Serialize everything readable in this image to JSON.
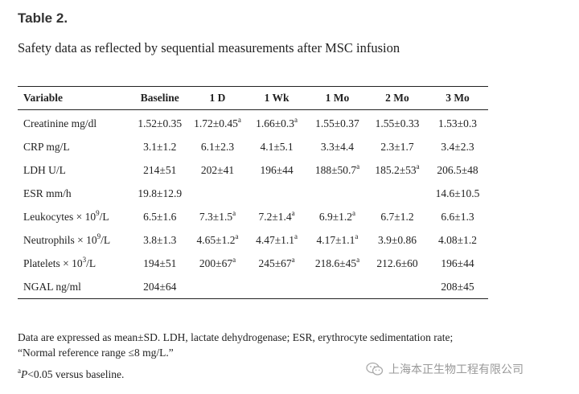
{
  "title": "Table 2.",
  "caption": "Safety data as reflected by sequential measurements after MSC infusion",
  "table": {
    "headers": [
      "Variable",
      "Baseline",
      "1 D",
      "1 Wk",
      "1 Mo",
      "2 Mo",
      "3 Mo"
    ],
    "rows": [
      {
        "name": "Creatinine mg/dl",
        "name_sup": "",
        "name_post": "",
        "cells": [
          {
            "v": "1.52±0.35",
            "s": ""
          },
          {
            "v": "1.72±0.45",
            "s": "a"
          },
          {
            "v": "1.66±0.3",
            "s": "a"
          },
          {
            "v": "1.55±0.37",
            "s": ""
          },
          {
            "v": "1.55±0.33",
            "s": ""
          },
          {
            "v": "1.53±0.3",
            "s": ""
          }
        ]
      },
      {
        "name": "CRP mg/L",
        "name_sup": "",
        "name_post": "",
        "cells": [
          {
            "v": "3.1±1.2",
            "s": ""
          },
          {
            "v": "6.1±2.3",
            "s": ""
          },
          {
            "v": "4.1±5.1",
            "s": ""
          },
          {
            "v": "3.3±4.4",
            "s": ""
          },
          {
            "v": "2.3±1.7",
            "s": ""
          },
          {
            "v": "3.4±2.3",
            "s": ""
          }
        ]
      },
      {
        "name": "LDH U/L",
        "name_sup": "",
        "name_post": "",
        "cells": [
          {
            "v": "214±51",
            "s": ""
          },
          {
            "v": "202±41",
            "s": ""
          },
          {
            "v": "196±44",
            "s": ""
          },
          {
            "v": "188±50.7",
            "s": "a"
          },
          {
            "v": "185.2±53",
            "s": "a"
          },
          {
            "v": "206.5±48",
            "s": ""
          }
        ]
      },
      {
        "name": "ESR mm/h",
        "name_sup": "",
        "name_post": "",
        "cells": [
          {
            "v": "19.8±12.9",
            "s": ""
          },
          {
            "v": "",
            "s": ""
          },
          {
            "v": "",
            "s": ""
          },
          {
            "v": "",
            "s": ""
          },
          {
            "v": "",
            "s": ""
          },
          {
            "v": "14.6±10.5",
            "s": ""
          }
        ]
      },
      {
        "name": "Leukocytes × 10",
        "name_sup": "9",
        "name_post": "/L",
        "cells": [
          {
            "v": "6.5±1.6",
            "s": ""
          },
          {
            "v": "7.3±1.5",
            "s": "a"
          },
          {
            "v": "7.2±1.4",
            "s": "a"
          },
          {
            "v": "6.9±1.2",
            "s": "a"
          },
          {
            "v": "6.7±1.2",
            "s": ""
          },
          {
            "v": "6.6±1.3",
            "s": ""
          }
        ]
      },
      {
        "name": "Neutrophils × 10",
        "name_sup": "9",
        "name_post": "/L",
        "cells": [
          {
            "v": "3.8±1.3",
            "s": ""
          },
          {
            "v": "4.65±1.2",
            "s": "a"
          },
          {
            "v": "4.47±1.1",
            "s": "a"
          },
          {
            "v": "4.17±1.1",
            "s": "a"
          },
          {
            "v": "3.9±0.86",
            "s": ""
          },
          {
            "v": "4.08±1.2",
            "s": ""
          }
        ]
      },
      {
        "name": "Platelets × 10",
        "name_sup": "3",
        "name_post": "/L",
        "cells": [
          {
            "v": "194±51",
            "s": ""
          },
          {
            "v": "200±67",
            "s": "a"
          },
          {
            "v": "245±67",
            "s": "a"
          },
          {
            "v": "218.6±45",
            "s": "a"
          },
          {
            "v": "212.6±60",
            "s": ""
          },
          {
            "v": "196±44",
            "s": ""
          }
        ]
      },
      {
        "name": "NGAL ng/ml",
        "name_sup": "",
        "name_post": "",
        "cells": [
          {
            "v": "204±64",
            "s": ""
          },
          {
            "v": "",
            "s": ""
          },
          {
            "v": "",
            "s": ""
          },
          {
            "v": "",
            "s": ""
          },
          {
            "v": "",
            "s": ""
          },
          {
            "v": "208±45",
            "s": ""
          }
        ]
      }
    ]
  },
  "footnotes": {
    "note1": "Data are expressed as mean±SD. LDH, lactate dehydrogenase; ESR, erythrocyte sedimentation rate; “Normal reference range ≤8 mg/L.”",
    "note2_sup": "a",
    "note2_p": "P",
    "note2_rest": "<0.05 versus baseline."
  },
  "watermark": {
    "text": "上海本正生物工程有限公司",
    "icon": "wechat-icon"
  }
}
